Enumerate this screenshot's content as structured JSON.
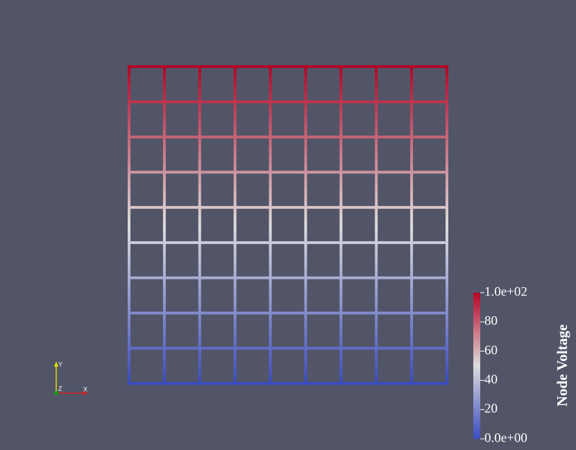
{
  "chart_data": {
    "type": "mesh",
    "title": "Node Voltage",
    "row_values": [
      100,
      88.9,
      77.8,
      66.7,
      55.6,
      44.4,
      33.3,
      22.2,
      11.1,
      0
    ],
    "colormap": [
      "#3b4cc0",
      "#dddddd",
      "#b40426"
    ],
    "ylim": [
      0,
      100
    ],
    "yticks": [
      {
        "value": 0,
        "label": "0.0e+00"
      },
      20,
      40,
      60,
      80,
      {
        "value": 100,
        "label": "1.0e+02"
      }
    ]
  },
  "orientation_axes": {
    "y": "Y",
    "z": "Z",
    "x": "X"
  }
}
